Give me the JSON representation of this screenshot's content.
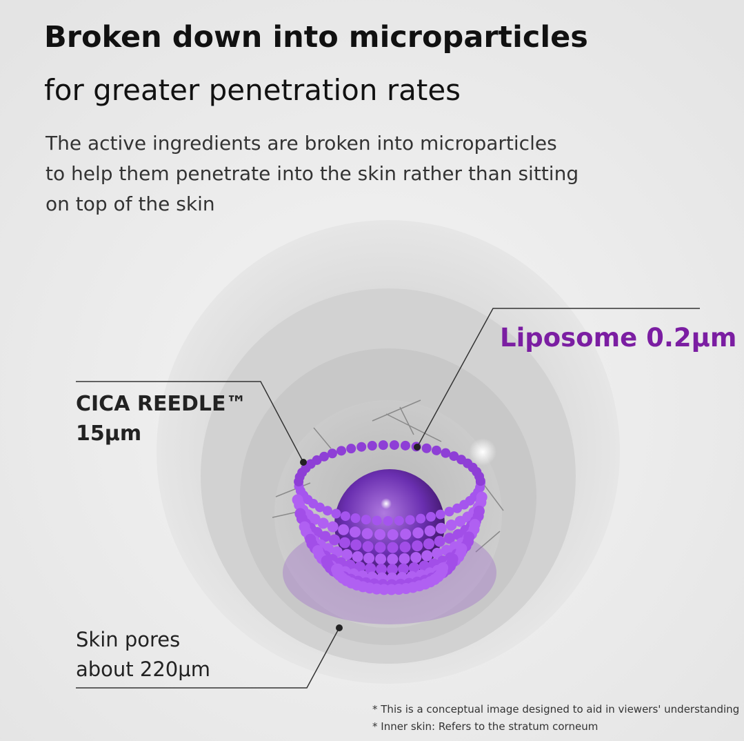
{
  "header": {
    "title": "Broken down into microparticles",
    "subtitle": "for greater penetration rates",
    "description": [
      "The active ingredients are broken into microparticles",
      "to help them penetrate into the skin rather than sitting",
      "on top of the skin"
    ]
  },
  "labels": {
    "liposome": "Liposome 0.2μm",
    "cica": [
      "CICA REEDLE™",
      "15μm"
    ],
    "pores": [
      "Skin pores",
      "about 220μm"
    ]
  },
  "notes": [
    "* This is a conceptual image designed to aid in viewers' understanding",
    "* Inner skin: Refers to the stratum corneum"
  ]
}
